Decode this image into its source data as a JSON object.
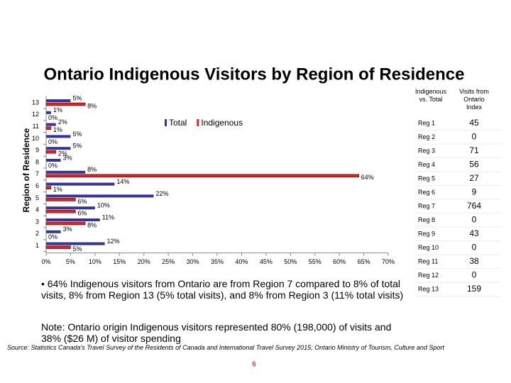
{
  "chart_data": {
    "type": "hbar",
    "title": "Ontario Indigenous Visitors by Region of Residence",
    "y_label": "Region of Residence",
    "categories": [
      "13",
      "12",
      "11",
      "10",
      "9",
      "8",
      "7",
      "6",
      "5",
      "4",
      "3",
      "2",
      "1"
    ],
    "series": [
      {
        "name": "Total",
        "color": "#333399",
        "values": [
          5,
          1,
          2,
          5,
          5,
          3,
          8,
          14,
          22,
          10,
          11,
          3,
          12
        ],
        "value_labels": [
          "5%",
          "1%",
          "2%",
          "5%",
          "5%",
          "3%",
          "8%",
          "14%",
          "22%",
          "10%",
          "11%",
          "3%",
          "12%"
        ]
      },
      {
        "name": "Indigenous",
        "color": "#dd2222",
        "values": [
          8,
          0,
          1,
          0,
          2,
          0,
          64,
          1,
          6,
          6,
          8,
          0,
          5
        ],
        "value_labels": [
          "8%",
          "0%",
          "1%",
          "0%",
          "2%",
          "0%",
          "64%",
          "1%",
          "6%",
          "6%",
          "8%",
          "0%",
          "5%"
        ]
      }
    ],
    "xlim": [
      0,
      70
    ],
    "xticks": [
      {
        "value": 0,
        "label": "0%"
      },
      {
        "value": 5,
        "label": "5%"
      },
      {
        "value": 10,
        "label": "10%"
      },
      {
        "value": 15,
        "label": "15%"
      },
      {
        "value": 20,
        "label": "20%"
      },
      {
        "value": 25,
        "label": "25%"
      },
      {
        "value": 30,
        "label": "30%"
      },
      {
        "value": 35,
        "label": "35%"
      },
      {
        "value": 40,
        "label": "40%"
      },
      {
        "value": 45,
        "label": "45%"
      },
      {
        "value": 50,
        "label": "50%"
      },
      {
        "value": 55,
        "label": "55%"
      },
      {
        "value": 60,
        "label": "60%"
      },
      {
        "value": 65,
        "label": "65%"
      },
      {
        "value": 70,
        "label": "70%"
      }
    ]
  },
  "table": {
    "header": [
      "Indigenous vs. Total",
      "Visits from Ontario Index"
    ],
    "rows": [
      [
        "Reg 1",
        45
      ],
      [
        "Reg 2",
        0
      ],
      [
        "Reg 3",
        71
      ],
      [
        "Reg 4",
        56
      ],
      [
        "Reg 5",
        27
      ],
      [
        "Reg 6",
        9
      ],
      [
        "Reg 7",
        764
      ],
      [
        "Reg 8",
        0
      ],
      [
        "Reg 9",
        43
      ],
      [
        "Reg 10",
        0
      ],
      [
        "Reg 11",
        38
      ],
      [
        "Reg 12",
        0
      ],
      [
        "Reg 13",
        159
      ]
    ]
  },
  "bullet": "• 64% Indigenous visitors from Ontario are from Region 7 compared to 8% of total visits, 8% from Region 13 (5% total visits), and 8% from Region 3 (11% total visits)",
  "note": "Note: Ontario origin Indigenous visitors represented 80% (198,000) of visits and 38% ($26 M) of visitor spending",
  "source": "Source: Statistics Canada's Travel Survey of the Residents of Canada and International Travel Survey 2015; Ontario Ministry of Tourism, Culture and Sport",
  "page_number": "6"
}
